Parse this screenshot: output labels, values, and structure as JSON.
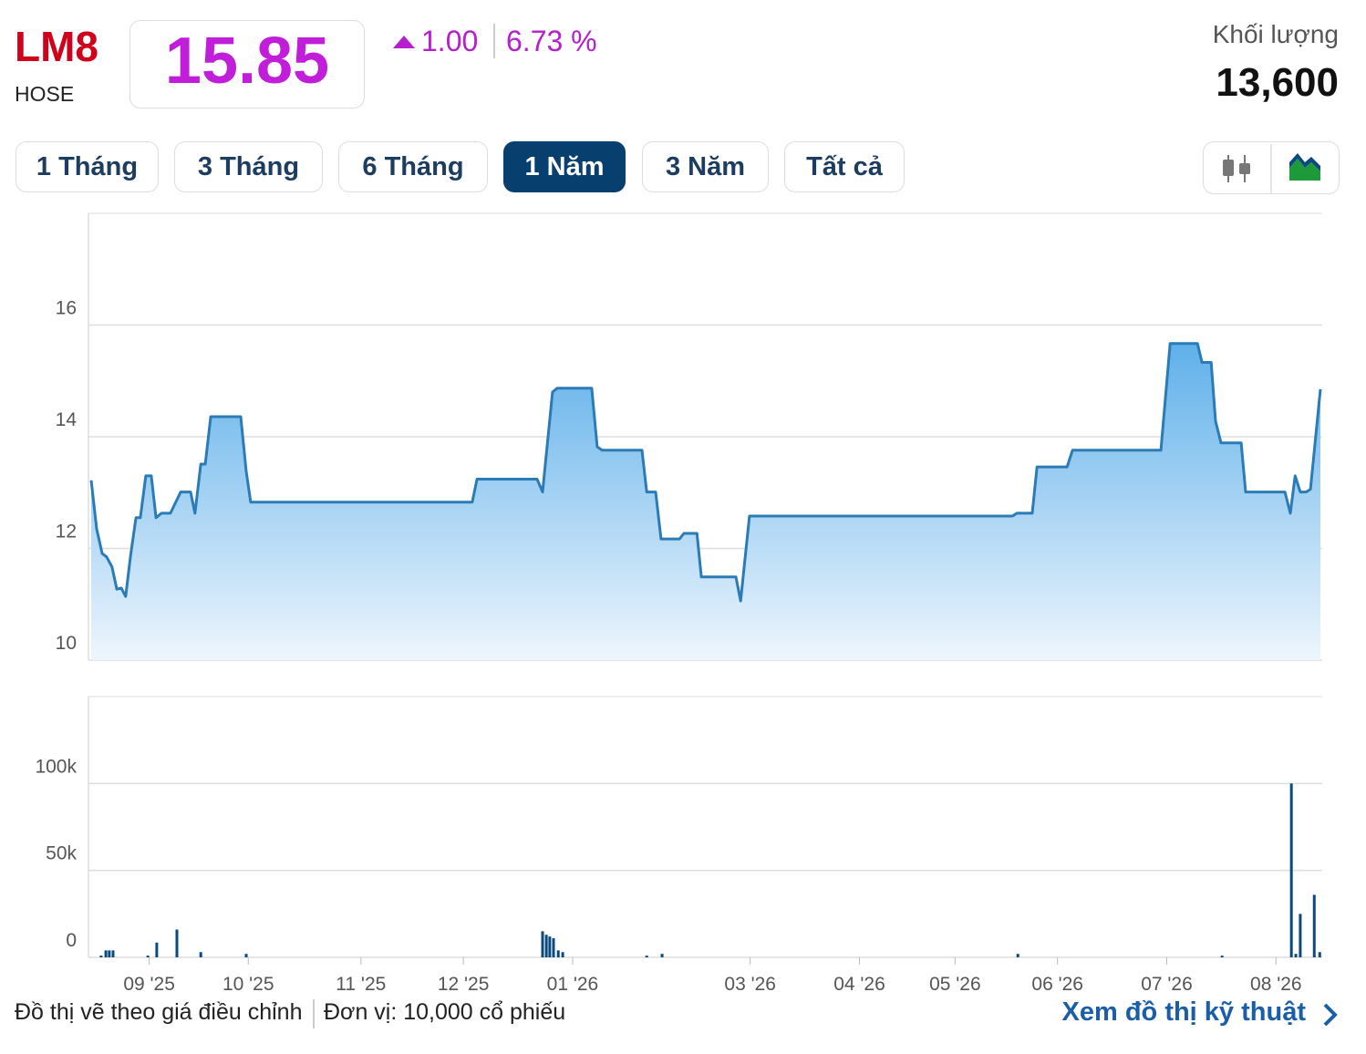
{
  "header": {
    "symbol": "LM8",
    "exchange": "HOSE",
    "price": "15.85",
    "change": "1.00",
    "change_percent": "6.73 %",
    "volume_label": "Khối lượng",
    "volume": "13,600"
  },
  "tabs": [
    "1 Tháng",
    "3 Tháng",
    "6 Tháng",
    "1 Năm",
    "3 Năm",
    "Tất cả"
  ],
  "active_tab": 3,
  "chart_data": [
    {
      "type": "area",
      "color": "#2b7bb6",
      "x": [
        0,
        1.6,
        3.2,
        4.5,
        6.1,
        7.5,
        8.8,
        10.1,
        11.5,
        13.1,
        14.4,
        16.0,
        17.6,
        19.0,
        20.6,
        23.2,
        26.2,
        29.1,
        30.4,
        32.1,
        33.4,
        35.0,
        43.8,
        45.4,
        46.7,
        111.6,
        113.0,
        130.6,
        132.2,
        135.1,
        136.5,
        146.6,
        148.2,
        149.6,
        161.3,
        162.7,
        165.3,
        166.9,
        172.3,
        173.6,
        177.4,
        178.7,
        188.8,
        190.2,
        192.8,
        269.8,
        271.1,
        275.6,
        277.0,
        285.8,
        287.4,
        313.3,
        316.0,
        324.0,
        325.3,
        328.0,
        329.3,
        330.9,
        336.8,
        338.1,
        349.6,
        351.2,
        352.6,
        354.1,
        355.8,
        357.1,
        360.0
      ],
      "values": [
        13.22,
        12.35,
        11.91,
        11.85,
        11.67,
        11.27,
        11.29,
        11.14,
        11.86,
        12.55,
        12.55,
        13.3,
        13.3,
        12.55,
        12.63,
        12.63,
        13.01,
        13.01,
        12.63,
        13.51,
        13.51,
        14.36,
        14.36,
        13.38,
        12.83,
        12.83,
        13.24,
        13.24,
        13.01,
        14.8,
        14.87,
        14.87,
        13.82,
        13.76,
        13.76,
        13.01,
        13.01,
        12.17,
        12.17,
        12.27,
        12.27,
        11.49,
        11.49,
        11.06,
        12.58,
        12.58,
        12.63,
        12.63,
        13.46,
        13.46,
        13.76,
        13.76,
        15.67,
        15.67,
        15.33,
        15.33,
        14.28,
        13.89,
        13.89,
        13.01,
        13.01,
        12.63,
        13.3,
        13.01,
        13.01,
        13.06,
        14.85
      ],
      "xlim": [
        0,
        360
      ],
      "ylim": [
        10,
        18
      ],
      "yticks": [
        10,
        12,
        14,
        16
      ],
      "grid": true
    },
    {
      "type": "bar",
      "color": "#0b4a7e",
      "x": [
        2.9,
        4.3,
        5.3,
        6.4,
        16.6,
        19.2,
        25.1,
        32.1,
        45.4,
        132.2,
        133.3,
        134.3,
        135.4,
        136.8,
        138.1,
        162.7,
        167.2,
        271.4,
        331.2,
        351.5,
        352.8,
        354.1,
        358.2,
        359.8
      ],
      "values": [
        1000,
        4000,
        4000,
        4000,
        1000,
        8500,
        16000,
        3000,
        2000,
        15000,
        13000,
        12000,
        11000,
        4000,
        3000,
        1000,
        2000,
        2000,
        1000,
        100000,
        2000,
        25000,
        36000,
        3000
      ],
      "xlim": [
        0,
        360
      ],
      "xticks": [
        {
          "value": 17,
          "label": "09 '25"
        },
        {
          "value": 46,
          "label": "10 '25"
        },
        {
          "value": 79,
          "label": "11 '25"
        },
        {
          "value": 109,
          "label": "12 '25"
        },
        {
          "value": 141,
          "label": "01 '26"
        },
        {
          "value": 193,
          "label": "03 '26"
        },
        {
          "value": 225,
          "label": "04 '26"
        },
        {
          "value": 253,
          "label": "05 '26"
        },
        {
          "value": 283,
          "label": "06 '26"
        },
        {
          "value": 315,
          "label": "07 '26"
        },
        {
          "value": 347,
          "label": "08 '26"
        }
      ],
      "ylim": [
        0,
        150000
      ],
      "yticks": [
        0,
        {
          "value": 50000,
          "label": "50k"
        },
        {
          "value": 100000,
          "label": "100k"
        }
      ],
      "grid": true
    }
  ],
  "footer": {
    "note": "Đồ thị vẽ theo giá điều chỉnh",
    "unit": "Đơn vị: 10,000 cổ phiếu",
    "link": "Xem đồ thị kỹ thuật"
  }
}
